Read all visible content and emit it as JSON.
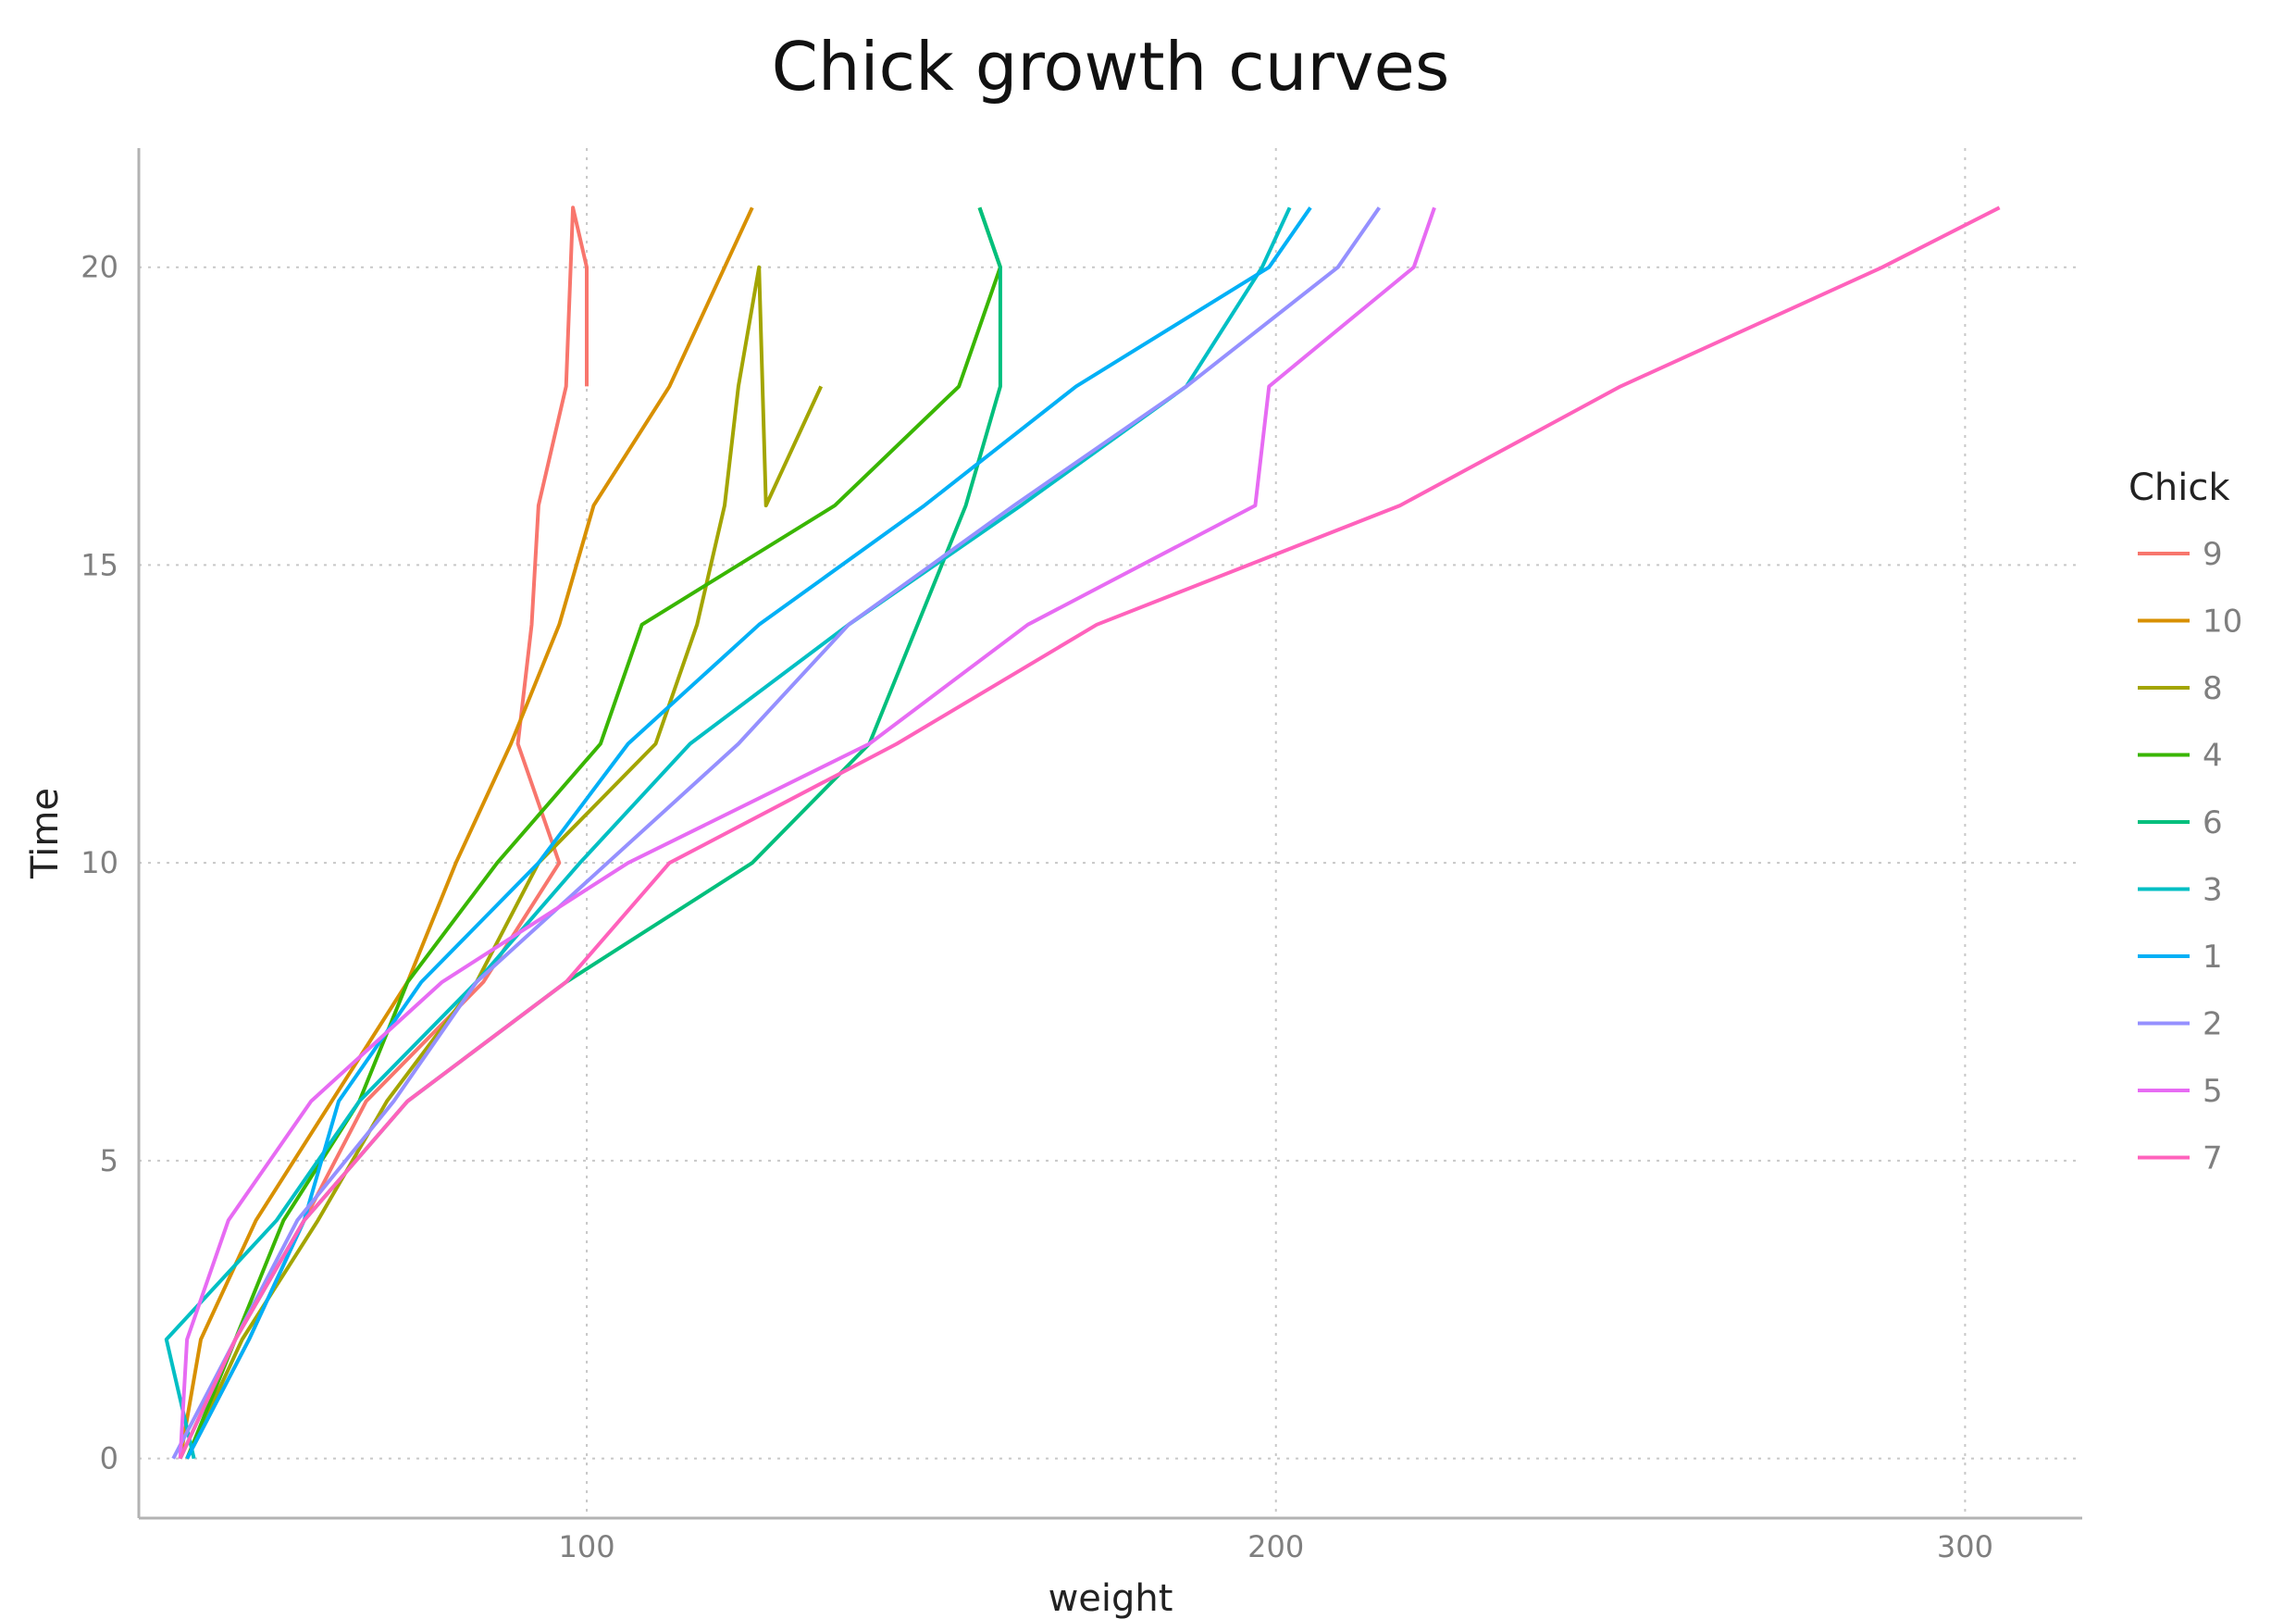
{
  "chart_data": {
    "type": "line",
    "title": "Chick growth curves",
    "xlabel": "weight",
    "ylabel": "Time",
    "xlim": [
      35,
      317
    ],
    "ylim": [
      -1,
      22
    ],
    "xticks": [
      100,
      200,
      300
    ],
    "yticks": [
      0,
      5,
      10,
      15,
      20
    ],
    "grid": true,
    "legend_title": "Chick",
    "legend_position": "right",
    "series": [
      {
        "name": "9",
        "color": "#F8766D",
        "points": [
          [
            42,
            0
          ],
          [
            51,
            2
          ],
          [
            59,
            4
          ],
          [
            68,
            6
          ],
          [
            85,
            8
          ],
          [
            96,
            10
          ],
          [
            90,
            12
          ],
          [
            92,
            14
          ],
          [
            93,
            16
          ],
          [
            97,
            18
          ],
          [
            98,
            21
          ],
          [
            100,
            20
          ],
          [
            100,
            18
          ]
        ]
      },
      {
        "name": "10",
        "color": "#D89000",
        "points": [
          [
            41,
            0
          ],
          [
            44,
            2
          ],
          [
            52,
            4
          ],
          [
            63,
            6
          ],
          [
            74,
            8
          ],
          [
            81,
            10
          ],
          [
            89,
            12
          ],
          [
            96,
            14
          ],
          [
            101,
            16
          ],
          [
            112,
            18
          ],
          [
            124,
            21
          ]
        ]
      },
      {
        "name": "8",
        "color": "#A3A500",
        "points": [
          [
            42,
            0
          ],
          [
            50,
            2
          ],
          [
            61,
            4
          ],
          [
            71,
            6
          ],
          [
            84,
            8
          ],
          [
            93,
            10
          ],
          [
            110,
            12
          ],
          [
            116,
            14
          ],
          [
            120,
            16
          ],
          [
            122,
            18
          ],
          [
            125,
            20
          ],
          [
            126,
            16
          ],
          [
            134,
            18
          ]
        ]
      },
      {
        "name": "4",
        "color": "#39B600",
        "points": [
          [
            42,
            0
          ],
          [
            49,
            2
          ],
          [
            56,
            4
          ],
          [
            67,
            6
          ],
          [
            74,
            8
          ],
          [
            87,
            10
          ],
          [
            102,
            12
          ],
          [
            108,
            14
          ],
          [
            136,
            16
          ],
          [
            154,
            18
          ],
          [
            160,
            20
          ],
          [
            157,
            21
          ]
        ]
      },
      {
        "name": "6",
        "color": "#00BF7D",
        "points": [
          [
            41,
            0
          ],
          [
            49,
            2
          ],
          [
            59,
            4
          ],
          [
            74,
            6
          ],
          [
            97,
            8
          ],
          [
            124,
            10
          ],
          [
            141,
            12
          ],
          [
            148,
            14
          ],
          [
            155,
            16
          ],
          [
            160,
            18
          ],
          [
            160,
            20
          ],
          [
            157,
            21
          ]
        ]
      },
      {
        "name": "3",
        "color": "#00BFC4",
        "points": [
          [
            43,
            0
          ],
          [
            39,
            2
          ],
          [
            55,
            4
          ],
          [
            67,
            6
          ],
          [
            84,
            8
          ],
          [
            99,
            10
          ],
          [
            115,
            12
          ],
          [
            138,
            14
          ],
          [
            163,
            16
          ],
          [
            187,
            18
          ],
          [
            198,
            20
          ],
          [
            202,
            21
          ]
        ]
      },
      {
        "name": "1",
        "color": "#00B0F6",
        "points": [
          [
            42,
            0
          ],
          [
            51,
            2
          ],
          [
            59,
            4
          ],
          [
            64,
            6
          ],
          [
            76,
            8
          ],
          [
            93,
            10
          ],
          [
            106,
            12
          ],
          [
            125,
            14
          ],
          [
            149,
            16
          ],
          [
            171,
            18
          ],
          [
            199,
            20
          ],
          [
            205,
            21
          ]
        ]
      },
      {
        "name": "2",
        "color": "#9590FF",
        "points": [
          [
            40,
            0
          ],
          [
            49,
            2
          ],
          [
            58,
            4
          ],
          [
            72,
            6
          ],
          [
            84,
            8
          ],
          [
            103,
            10
          ],
          [
            122,
            12
          ],
          [
            138,
            14
          ],
          [
            162,
            16
          ],
          [
            187,
            18
          ],
          [
            209,
            20
          ],
          [
            215,
            21
          ]
        ]
      },
      {
        "name": "5",
        "color": "#E76BF3",
        "points": [
          [
            41,
            0
          ],
          [
            42,
            2
          ],
          [
            48,
            4
          ],
          [
            60,
            6
          ],
          [
            79,
            8
          ],
          [
            106,
            10
          ],
          [
            141,
            12
          ],
          [
            164,
            14
          ],
          [
            197,
            16
          ],
          [
            199,
            18
          ],
          [
            220,
            20
          ],
          [
            223,
            21
          ]
        ]
      },
      {
        "name": "7",
        "color": "#FF62BC",
        "points": [
          [
            41,
            0
          ],
          [
            49,
            2
          ],
          [
            59,
            4
          ],
          [
            74,
            6
          ],
          [
            97,
            8
          ],
          [
            112,
            10
          ],
          [
            145,
            12
          ],
          [
            174,
            14
          ],
          [
            218,
            16
          ],
          [
            250,
            18
          ],
          [
            288,
            20
          ],
          [
            305,
            21
          ]
        ]
      }
    ]
  }
}
